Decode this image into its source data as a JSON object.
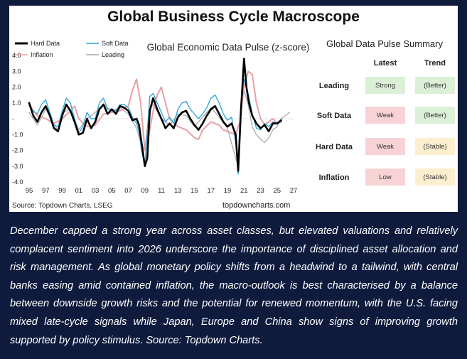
{
  "title": "Global Business Cycle Macroscope",
  "chart_data": {
    "type": "line",
    "title": "Global Economic Data Pulse (z-score)",
    "ylim": [
      -4.0,
      4.0
    ],
    "yticks": [
      "4.0",
      "3.0",
      "2.0",
      "1.0",
      "-",
      "-1.0",
      "-2.0",
      "-3.0",
      "-4.0"
    ],
    "xticks": [
      "95",
      "97",
      "99",
      "01",
      "03",
      "05",
      "07",
      "09",
      "11",
      "13",
      "15",
      "17",
      "19",
      "21",
      "23",
      "25",
      "27"
    ],
    "xlim": [
      1995,
      2027
    ],
    "series": [
      {
        "name": "Hard Data",
        "color": "#000000",
        "x": [
          1995,
          1995.5,
          1996,
          1996.5,
          1997,
          1997.5,
          1998,
          1998.5,
          1999,
          1999.5,
          2000,
          2000.5,
          2001,
          2001.5,
          2002,
          2002.5,
          2003,
          2003.5,
          2004,
          2004.5,
          2005,
          2005.5,
          2006,
          2006.5,
          2007,
          2007.5,
          2008,
          2008.3,
          2008.6,
          2009,
          2009.3,
          2009.6,
          2010,
          2010.5,
          2011,
          2011.5,
          2012,
          2012.5,
          2013,
          2013.5,
          2014,
          2014.5,
          2015,
          2015.5,
          2016,
          2016.5,
          2017,
          2017.5,
          2018,
          2018.5,
          2019,
          2019.5,
          2020,
          2020.3,
          2020.6,
          2021,
          2021.3,
          2021.6,
          2022,
          2022.5,
          2023,
          2023.5,
          2024,
          2024.5,
          2025,
          2025.5
        ],
        "y": [
          1.0,
          0.2,
          -0.2,
          0.4,
          0.8,
          0.2,
          -0.6,
          -0.8,
          0.2,
          0.9,
          0.5,
          -0.2,
          -1.0,
          -0.9,
          0.0,
          -0.6,
          -0.2,
          0.6,
          0.9,
          0.3,
          0.6,
          0.3,
          0.8,
          0.7,
          0.5,
          -0.1,
          0.0,
          -0.4,
          -1.5,
          -3.0,
          -2.5,
          0.5,
          1.3,
          0.6,
          0.0,
          -0.6,
          -0.3,
          -0.6,
          0.1,
          0.4,
          0.5,
          0.0,
          -0.4,
          -0.7,
          -0.3,
          0.2,
          0.6,
          0.8,
          0.3,
          -0.2,
          -0.5,
          -0.3,
          -1.0,
          -3.3,
          0.2,
          3.8,
          2.0,
          1.0,
          0.2,
          -0.3,
          -0.6,
          -0.4,
          -0.8,
          -0.3,
          -0.3,
          -0.1
        ]
      },
      {
        "name": "Soft Data",
        "color": "#35a7da",
        "x": [
          1995,
          1995.5,
          1996,
          1996.5,
          1997,
          1997.5,
          1998,
          1998.5,
          1999,
          1999.5,
          2000,
          2000.5,
          2001,
          2001.5,
          2002,
          2002.5,
          2003,
          2003.5,
          2004,
          2004.5,
          2005,
          2005.5,
          2006,
          2006.5,
          2007,
          2007.5,
          2008,
          2008.3,
          2008.6,
          2009,
          2009.3,
          2009.6,
          2010,
          2010.5,
          2011,
          2011.5,
          2012,
          2012.5,
          2013,
          2013.5,
          2014,
          2014.5,
          2015,
          2015.5,
          2016,
          2016.5,
          2017,
          2017.5,
          2018,
          2018.5,
          2019,
          2019.5,
          2020,
          2020.3,
          2020.6,
          2021,
          2021.5,
          2022,
          2022.5,
          2023,
          2023.5,
          2024,
          2024.5,
          2025,
          2025.5
        ],
        "y": [
          0.8,
          0.5,
          0.3,
          0.9,
          1.2,
          0.4,
          -0.4,
          -0.5,
          0.5,
          1.3,
          1.0,
          0.0,
          -0.9,
          -0.5,
          0.4,
          0.0,
          0.0,
          1.0,
          1.3,
          0.6,
          0.6,
          0.5,
          0.9,
          0.9,
          0.7,
          0.1,
          -0.3,
          -0.8,
          -2.0,
          -3.0,
          -1.0,
          1.4,
          1.6,
          1.0,
          0.4,
          -0.2,
          0.1,
          -0.3,
          0.6,
          1.0,
          1.1,
          0.6,
          0.3,
          0.0,
          0.3,
          0.7,
          1.3,
          1.5,
          1.0,
          0.3,
          -0.1,
          0.1,
          -1.5,
          -3.5,
          0.5,
          2.5,
          1.6,
          0.3,
          -0.6,
          -0.7,
          -0.3,
          -0.5,
          -0.2,
          -0.3,
          -0.2
        ]
      },
      {
        "name": "Inflation",
        "color": "#e8a0a6",
        "x": [
          1995,
          1995.5,
          1996,
          1997,
          1998,
          1999,
          2000,
          2000.5,
          2001,
          2002,
          2003,
          2004,
          2005,
          2006,
          2007,
          2007.5,
          2008,
          2008.5,
          2009,
          2009.5,
          2010,
          2010.5,
          2011,
          2011.5,
          2012,
          2013,
          2014,
          2015,
          2015.5,
          2016,
          2017,
          2017.5,
          2018,
          2018.5,
          2019,
          2020,
          2020.5,
          2021,
          2021.5,
          2022,
          2022.5,
          2023,
          2023.5,
          2024,
          2024.5,
          2025,
          2025.5
        ],
        "y": [
          1.0,
          0.5,
          0.2,
          0.0,
          -0.3,
          0.0,
          0.5,
          0.8,
          0.0,
          -0.5,
          -0.4,
          0.3,
          0.4,
          0.5,
          0.8,
          1.8,
          2.5,
          1.0,
          -2.0,
          -1.0,
          0.5,
          1.5,
          2.0,
          1.0,
          0.0,
          -0.5,
          -0.7,
          -1.2,
          -1.3,
          -0.7,
          -0.2,
          -0.3,
          -0.4,
          -0.7,
          -0.8,
          -1.0,
          -0.2,
          2.0,
          3.0,
          2.8,
          1.0,
          0.0,
          -0.4,
          -0.2,
          0.0,
          -0.3,
          -0.2
        ]
      },
      {
        "name": "Leading",
        "color": "#aaaaaa",
        "x": [
          1995,
          1995.5,
          1996,
          1997,
          1998,
          1998.5,
          1999,
          2000,
          2001,
          2002,
          2003,
          2004,
          2005,
          2006,
          2007,
          2008,
          2008.5,
          2009,
          2009.5,
          2010,
          2011,
          2012,
          2013,
          2014,
          2015,
          2016,
          2017,
          2018,
          2019,
          2020,
          2020.3,
          2020.6,
          2021,
          2021.5,
          2022,
          2022.5,
          2023,
          2023.5,
          2024,
          2024.5,
          2025,
          2025.5,
          2026,
          2026.5
        ],
        "y": [
          0.4,
          0.0,
          -0.4,
          0.6,
          -0.3,
          -0.8,
          0.4,
          0.6,
          -0.7,
          0.0,
          0.4,
          0.9,
          0.5,
          0.7,
          0.3,
          -0.6,
          -1.5,
          -2.0,
          0.5,
          0.9,
          0.0,
          -0.4,
          0.3,
          0.2,
          -0.5,
          0.1,
          0.7,
          0.1,
          -0.6,
          -2.5,
          -3.0,
          1.0,
          1.8,
          0.9,
          -0.5,
          -1.0,
          -1.3,
          -1.5,
          -1.2,
          -0.7,
          -0.5,
          0.0,
          0.2,
          0.4
        ]
      }
    ]
  },
  "source_left": "Source: Topdown Charts, LSEG",
  "source_right": "topdowncharts.com",
  "summary": {
    "title": "Global Data Pulse Summary",
    "col_latest": "Latest",
    "col_trend": "Trend",
    "rows": [
      {
        "label": "Leading",
        "latest": "Strong",
        "trend": "(Better)",
        "latest_color": "#dcefd7",
        "trend_color": "#dcefd7"
      },
      {
        "label": "Soft Data",
        "latest": "Weak",
        "trend": "(Better)",
        "latest_color": "#f7d3d6",
        "trend_color": "#dcefd7"
      },
      {
        "label": "Hard Data",
        "latest": "Weak",
        "trend": "(Stable)",
        "latest_color": "#f7d3d6",
        "trend_color": "#fbefcf"
      },
      {
        "label": "Inflation",
        "latest": "Low",
        "trend": "(Stable)",
        "latest_color": "#f7d3d6",
        "trend_color": "#fbefcf"
      }
    ]
  },
  "caption": "December capped a strong year across asset classes, but elevated valuations and relatively complacent sentiment into 2026 underscore the importance of disciplined asset allocation and risk management. As global monetary policy shifts from a headwind to a tailwind, with central banks easing amid contained inflation, the macro-outlook is best characterised by a balance between downside growth risks and the potential for renewed momentum, with the U.S. facing mixed late-cycle signals while Japan, Europe and China show signs of improving growth supported by policy stimulus. Source: Topdown Charts."
}
